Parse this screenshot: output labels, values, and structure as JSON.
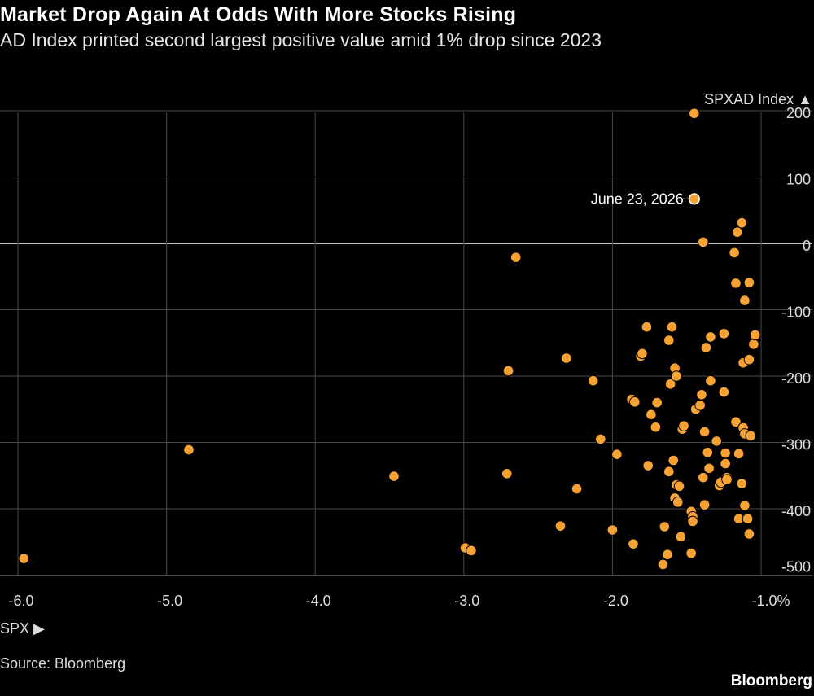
{
  "header": {
    "title": "Market Drop Again At Odds With More Stocks Rising",
    "subtitle": "AD Index printed second largest positive value amid 1% drop since 2023"
  },
  "footer": {
    "source": "Source: Bloomberg",
    "brand": "Bloomberg"
  },
  "colors": {
    "point": "#f7a234",
    "grid": "#4a4a4a",
    "zero_line": "#ffffff",
    "background": "#000000"
  },
  "chart_data": {
    "type": "scatter",
    "xlabel": "SPX ▶",
    "ylabel": "SPXAD Index ▲",
    "xlim": [
      -6.0,
      -0.9
    ],
    "ylim": [
      -505,
      210
    ],
    "x_ticks": [
      -6.0,
      -5.0,
      -4.0,
      -3.0,
      -2.0,
      -1.0
    ],
    "x_tick_labels": [
      "-6.0",
      "-5.0",
      "-4.0",
      "-3.0",
      "-2.0",
      "-1.0%"
    ],
    "y_ticks": [
      200,
      100,
      0,
      -100,
      -200,
      -300,
      -400,
      -500
    ],
    "y_tick_labels": [
      "200",
      "100",
      "0",
      "-100",
      "-200",
      "-300",
      "-400",
      "-500"
    ],
    "grid": true,
    "annotations": [
      {
        "text": "June 23, 2026",
        "x": -1.45,
        "y": 67
      }
    ],
    "points": [
      [
        -5.96,
        -475
      ],
      [
        -4.85,
        -311
      ],
      [
        -3.47,
        -351
      ],
      [
        -2.99,
        -459
      ],
      [
        -2.95,
        -463
      ],
      [
        -2.71,
        -347
      ],
      [
        -2.7,
        -192
      ],
      [
        -2.65,
        -21
      ],
      [
        -2.35,
        -426
      ],
      [
        -2.31,
        -173
      ],
      [
        -2.24,
        -370
      ],
      [
        -2.13,
        -207
      ],
      [
        -2.08,
        -295
      ],
      [
        -2.0,
        -432
      ],
      [
        -1.97,
        -318
      ],
      [
        -1.86,
        -453
      ],
      [
        -1.87,
        -235
      ],
      [
        -1.85,
        -239
      ],
      [
        -1.81,
        -170
      ],
      [
        -1.8,
        -166
      ],
      [
        -1.77,
        -126
      ],
      [
        -1.76,
        -335
      ],
      [
        -1.74,
        -258
      ],
      [
        -1.71,
        -277
      ],
      [
        -1.7,
        -240
      ],
      [
        -1.66,
        -484
      ],
      [
        -1.65,
        -427
      ],
      [
        -1.63,
        -469
      ],
      [
        -1.62,
        -146
      ],
      [
        -1.62,
        -344
      ],
      [
        -1.6,
        -126
      ],
      [
        -1.61,
        -212
      ],
      [
        -1.59,
        -327
      ],
      [
        -1.58,
        -188
      ],
      [
        -1.58,
        -384
      ],
      [
        -1.57,
        -200
      ],
      [
        -1.57,
        -364
      ],
      [
        -1.56,
        -390
      ],
      [
        -1.55,
        -366
      ],
      [
        -1.54,
        -442
      ],
      [
        -1.53,
        -280
      ],
      [
        -1.52,
        -275
      ],
      [
        -1.47,
        -467
      ],
      [
        -1.47,
        -404
      ],
      [
        -1.46,
        -412
      ],
      [
        -1.46,
        -419
      ],
      [
        -1.44,
        -250
      ],
      [
        -1.45,
        196
      ],
      [
        -1.45,
        67
      ],
      [
        -1.41,
        -244
      ],
      [
        -1.4,
        -228
      ],
      [
        -1.39,
        2
      ],
      [
        -1.39,
        -353
      ],
      [
        -1.38,
        -394
      ],
      [
        -1.38,
        -284
      ],
      [
        -1.37,
        -157
      ],
      [
        -1.36,
        -315
      ],
      [
        -1.35,
        -339
      ],
      [
        -1.34,
        -207
      ],
      [
        -1.34,
        -141
      ],
      [
        -1.3,
        -298
      ],
      [
        -1.28,
        -365
      ],
      [
        -1.27,
        -360
      ],
      [
        -1.25,
        -224
      ],
      [
        -1.25,
        -136
      ],
      [
        -1.24,
        -316
      ],
      [
        -1.24,
        -332
      ],
      [
        -1.23,
        -353
      ],
      [
        -1.23,
        -356
      ],
      [
        -1.18,
        -14
      ],
      [
        -1.17,
        -60
      ],
      [
        -1.17,
        -269
      ],
      [
        -1.16,
        17
      ],
      [
        -1.15,
        -415
      ],
      [
        -1.15,
        -317
      ],
      [
        -1.13,
        31
      ],
      [
        -1.13,
        -362
      ],
      [
        -1.12,
        -180
      ],
      [
        -1.12,
        -278
      ],
      [
        -1.11,
        -395
      ],
      [
        -1.11,
        -287
      ],
      [
        -1.11,
        -86
      ],
      [
        -1.09,
        -415
      ],
      [
        -1.08,
        -175
      ],
      [
        -1.08,
        -438
      ],
      [
        -1.08,
        -59
      ],
      [
        -1.07,
        -290
      ],
      [
        -1.05,
        -152
      ],
      [
        -1.04,
        -138
      ]
    ]
  }
}
